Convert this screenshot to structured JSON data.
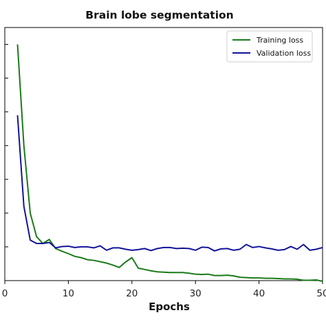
{
  "chart_data": {
    "type": "line",
    "title": "Brain lobe segmentation",
    "xlabel": "Epochs",
    "ylabel": "",
    "xlim": [
      0,
      50
    ],
    "ylim": [
      0.0,
      0.75
    ],
    "xticks": [
      0,
      10,
      20,
      30,
      40,
      50
    ],
    "yticks": [
      0.1,
      0.2,
      0.3,
      0.4,
      0.5,
      0.6,
      0.7
    ],
    "legend_position": "upper-right",
    "grid": false,
    "series": [
      {
        "name": "Training loss",
        "color": "#1a7a1a",
        "x": [
          2,
          3,
          4,
          5,
          6,
          7,
          8,
          9,
          10,
          11,
          12,
          13,
          14,
          15,
          16,
          17,
          18,
          19,
          20,
          21,
          22,
          23,
          24,
          25,
          26,
          27,
          28,
          29,
          30,
          31,
          32,
          33,
          34,
          35,
          36,
          37,
          38,
          39,
          40,
          41,
          42,
          43,
          44,
          45,
          46,
          47,
          48,
          49,
          50
        ],
        "values": [
          0.7,
          0.4,
          0.2,
          0.13,
          0.11,
          0.122,
          0.095,
          0.087,
          0.08,
          0.072,
          0.068,
          0.062,
          0.06,
          0.056,
          0.052,
          0.046,
          0.039,
          0.055,
          0.068,
          0.037,
          0.033,
          0.029,
          0.026,
          0.025,
          0.024,
          0.024,
          0.024,
          0.022,
          0.019,
          0.018,
          0.019,
          0.015,
          0.015,
          0.016,
          0.014,
          0.01,
          0.009,
          0.008,
          0.008,
          0.007,
          0.007,
          0.006,
          0.005,
          0.005,
          0.004,
          0.001,
          0.001,
          0.002,
          -0.002
        ]
      },
      {
        "name": "Validation loss",
        "color": "#12129a",
        "x": [
          2,
          3,
          4,
          5,
          6,
          7,
          8,
          9,
          10,
          11,
          12,
          13,
          14,
          15,
          16,
          17,
          18,
          19,
          20,
          21,
          22,
          23,
          24,
          25,
          26,
          27,
          28,
          29,
          30,
          31,
          32,
          33,
          34,
          35,
          36,
          37,
          38,
          39,
          40,
          41,
          42,
          43,
          44,
          45,
          46,
          47,
          48,
          49,
          50
        ],
        "values": [
          0.49,
          0.22,
          0.12,
          0.11,
          0.11,
          0.113,
          0.097,
          0.101,
          0.102,
          0.098,
          0.1,
          0.1,
          0.097,
          0.103,
          0.09,
          0.097,
          0.097,
          0.093,
          0.09,
          0.092,
          0.095,
          0.089,
          0.095,
          0.098,
          0.098,
          0.095,
          0.096,
          0.095,
          0.09,
          0.099,
          0.098,
          0.088,
          0.094,
          0.095,
          0.09,
          0.093,
          0.107,
          0.098,
          0.101,
          0.097,
          0.094,
          0.09,
          0.092,
          0.101,
          0.093,
          0.107,
          0.09,
          0.093,
          0.098
        ]
      }
    ]
  }
}
